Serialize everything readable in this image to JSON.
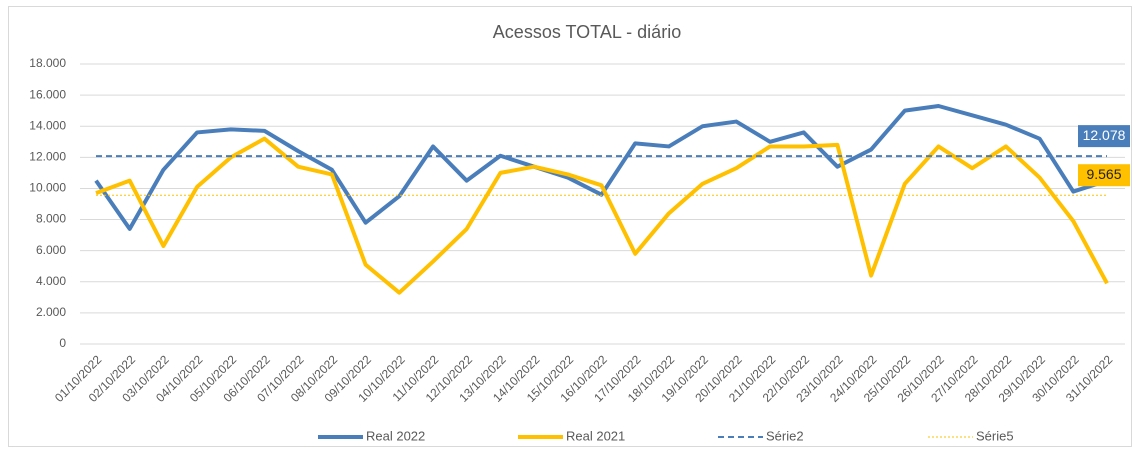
{
  "chart_data": {
    "type": "line",
    "title": "Acessos TOTAL - diário",
    "categories": [
      "01/10/2022",
      "02/10/2022",
      "03/10/2022",
      "04/10/2022",
      "05/10/2022",
      "06/10/2022",
      "07/10/2022",
      "08/10/2022",
      "09/10/2022",
      "10/10/2022",
      "11/10/2022",
      "12/10/2022",
      "13/10/2022",
      "14/10/2022",
      "15/10/2022",
      "16/10/2022",
      "17/10/2022",
      "18/10/2022",
      "19/10/2022",
      "20/10/2022",
      "21/10/2022",
      "22/10/2022",
      "23/10/2022",
      "24/10/2022",
      "25/10/2022",
      "26/10/2022",
      "27/10/2022",
      "28/10/2022",
      "29/10/2022",
      "30/10/2022",
      "31/10/2022"
    ],
    "series": [
      {
        "name": "Real 2022",
        "color": "#4a7ebb",
        "style": "solid",
        "width": 4,
        "values": [
          10500,
          7400,
          11200,
          13600,
          13800,
          13700,
          12400,
          11200,
          7800,
          9500,
          12700,
          10500,
          12100,
          11400,
          10700,
          9600,
          12900,
          12700,
          14000,
          14300,
          13000,
          13600,
          11400,
          12500,
          15000,
          15300,
          14700,
          14100,
          13200,
          9800,
          10500
        ]
      },
      {
        "name": "Real 2021",
        "color": "#ffc000",
        "style": "solid",
        "width": 4,
        "values": [
          9700,
          10500,
          6300,
          10100,
          12000,
          13200,
          11400,
          10900,
          5100,
          3300,
          5300,
          7400,
          11000,
          11400,
          10900,
          10200,
          5800,
          8400,
          10300,
          11300,
          12700,
          12700,
          12800,
          4400,
          10300,
          12700,
          11300,
          12700,
          10700,
          7900,
          3900
        ]
      },
      {
        "name": "Série2",
        "color": "#4a7ebb",
        "style": "dashed",
        "width": 2,
        "values": [
          12078,
          12078,
          12078,
          12078,
          12078,
          12078,
          12078,
          12078,
          12078,
          12078,
          12078,
          12078,
          12078,
          12078,
          12078,
          12078,
          12078,
          12078,
          12078,
          12078,
          12078,
          12078,
          12078,
          12078,
          12078,
          12078,
          12078,
          12078,
          12078,
          12078,
          12078
        ],
        "value_labels": [
          null,
          null,
          null,
          null,
          null,
          null,
          null,
          null,
          null,
          null,
          null,
          null,
          null,
          null,
          null,
          null,
          null,
          null,
          null,
          null,
          null,
          null,
          null,
          null,
          null,
          null,
          null,
          null,
          null,
          null,
          "12.078"
        ]
      },
      {
        "name": "Série5",
        "color": "#ffc000",
        "style": "dotted",
        "width": 1,
        "values": [
          9565,
          9565,
          9565,
          9565,
          9565,
          9565,
          9565,
          9565,
          9565,
          9565,
          9565,
          9565,
          9565,
          9565,
          9565,
          9565,
          9565,
          9565,
          9565,
          9565,
          9565,
          9565,
          9565,
          9565,
          9565,
          9565,
          9565,
          9565,
          9565,
          9565,
          9565
        ],
        "value_labels": [
          null,
          null,
          null,
          null,
          null,
          null,
          null,
          null,
          null,
          null,
          null,
          null,
          null,
          null,
          null,
          null,
          null,
          null,
          null,
          null,
          null,
          null,
          null,
          null,
          null,
          null,
          null,
          null,
          null,
          null,
          "9.565"
        ]
      }
    ],
    "ylim": [
      0,
      18000
    ],
    "yticks": [
      0,
      {
        "value": 2000,
        "label": "2.000"
      },
      {
        "value": 4000,
        "label": "4.000"
      },
      {
        "value": 6000,
        "label": "6.000"
      },
      {
        "value": 8000,
        "label": "8.000"
      },
      {
        "value": 10000,
        "label": "10.000"
      },
      {
        "value": 12000,
        "label": "12.000"
      },
      {
        "value": 14000,
        "label": "14.000"
      },
      {
        "value": 16000,
        "label": "16.000"
      },
      {
        "value": 18000,
        "label": "18.000"
      }
    ],
    "grid": true,
    "legend": "bottom"
  }
}
